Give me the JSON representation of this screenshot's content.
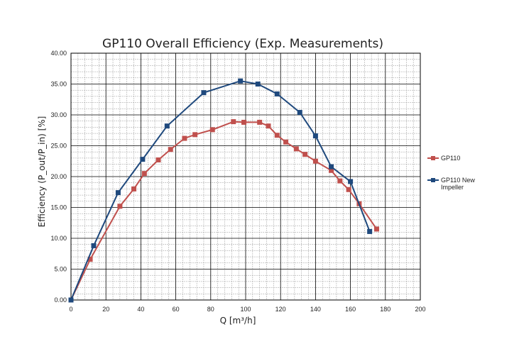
{
  "chart_data": {
    "type": "line",
    "title": "GP110 Overall Efficiency (Exp. Measurements)",
    "xlabel": "Q [m³/h]",
    "ylabel": "Efficiency (P_out/P_in) [%]",
    "xlim": [
      0,
      200
    ],
    "ylim": [
      0,
      40
    ],
    "x_ticks": [
      0,
      20,
      40,
      60,
      80,
      100,
      120,
      140,
      160,
      180,
      200
    ],
    "y_ticks": [
      0,
      5,
      10,
      15,
      20,
      25,
      30,
      35,
      40
    ],
    "x_tick_labels": [
      "0",
      "20",
      "40",
      "60",
      "80",
      "100",
      "120",
      "140",
      "160",
      "180",
      "200"
    ],
    "y_tick_labels": [
      "0.00",
      "5.00",
      "10.00",
      "15.00",
      "20.00",
      "25.00",
      "30.00",
      "35.00",
      "40.00"
    ],
    "grid": true,
    "minor_grid": true,
    "legend_position": "right",
    "series": [
      {
        "name": "GP110",
        "color": "#c0504d",
        "x": [
          0,
          11,
          28,
          36,
          42,
          50,
          57,
          65,
          71,
          81,
          93,
          99,
          108,
          113,
          118,
          123,
          129,
          134,
          140,
          149,
          154,
          159,
          165,
          175
        ],
        "y": [
          0,
          6.6,
          15.2,
          18.0,
          20.5,
          22.7,
          24.4,
          26.2,
          26.8,
          27.6,
          28.9,
          28.8,
          28.8,
          28.2,
          26.7,
          25.6,
          24.5,
          23.6,
          22.5,
          21.0,
          19.3,
          17.9,
          15.6,
          11.5
        ]
      },
      {
        "name": "GP110 New Impeller",
        "color": "#1f497d",
        "x": [
          0,
          13,
          27,
          41,
          55,
          76,
          97,
          107,
          118,
          131,
          140,
          149,
          160,
          171
        ],
        "y": [
          0,
          8.8,
          17.4,
          22.8,
          28.2,
          33.6,
          35.5,
          35.0,
          33.4,
          30.4,
          26.6,
          21.6,
          19.2,
          11.1
        ]
      }
    ],
    "legend": [
      {
        "lines": [
          "GP110"
        ]
      },
      {
        "lines": [
          "GP110 New",
          "Impeller"
        ]
      }
    ]
  }
}
